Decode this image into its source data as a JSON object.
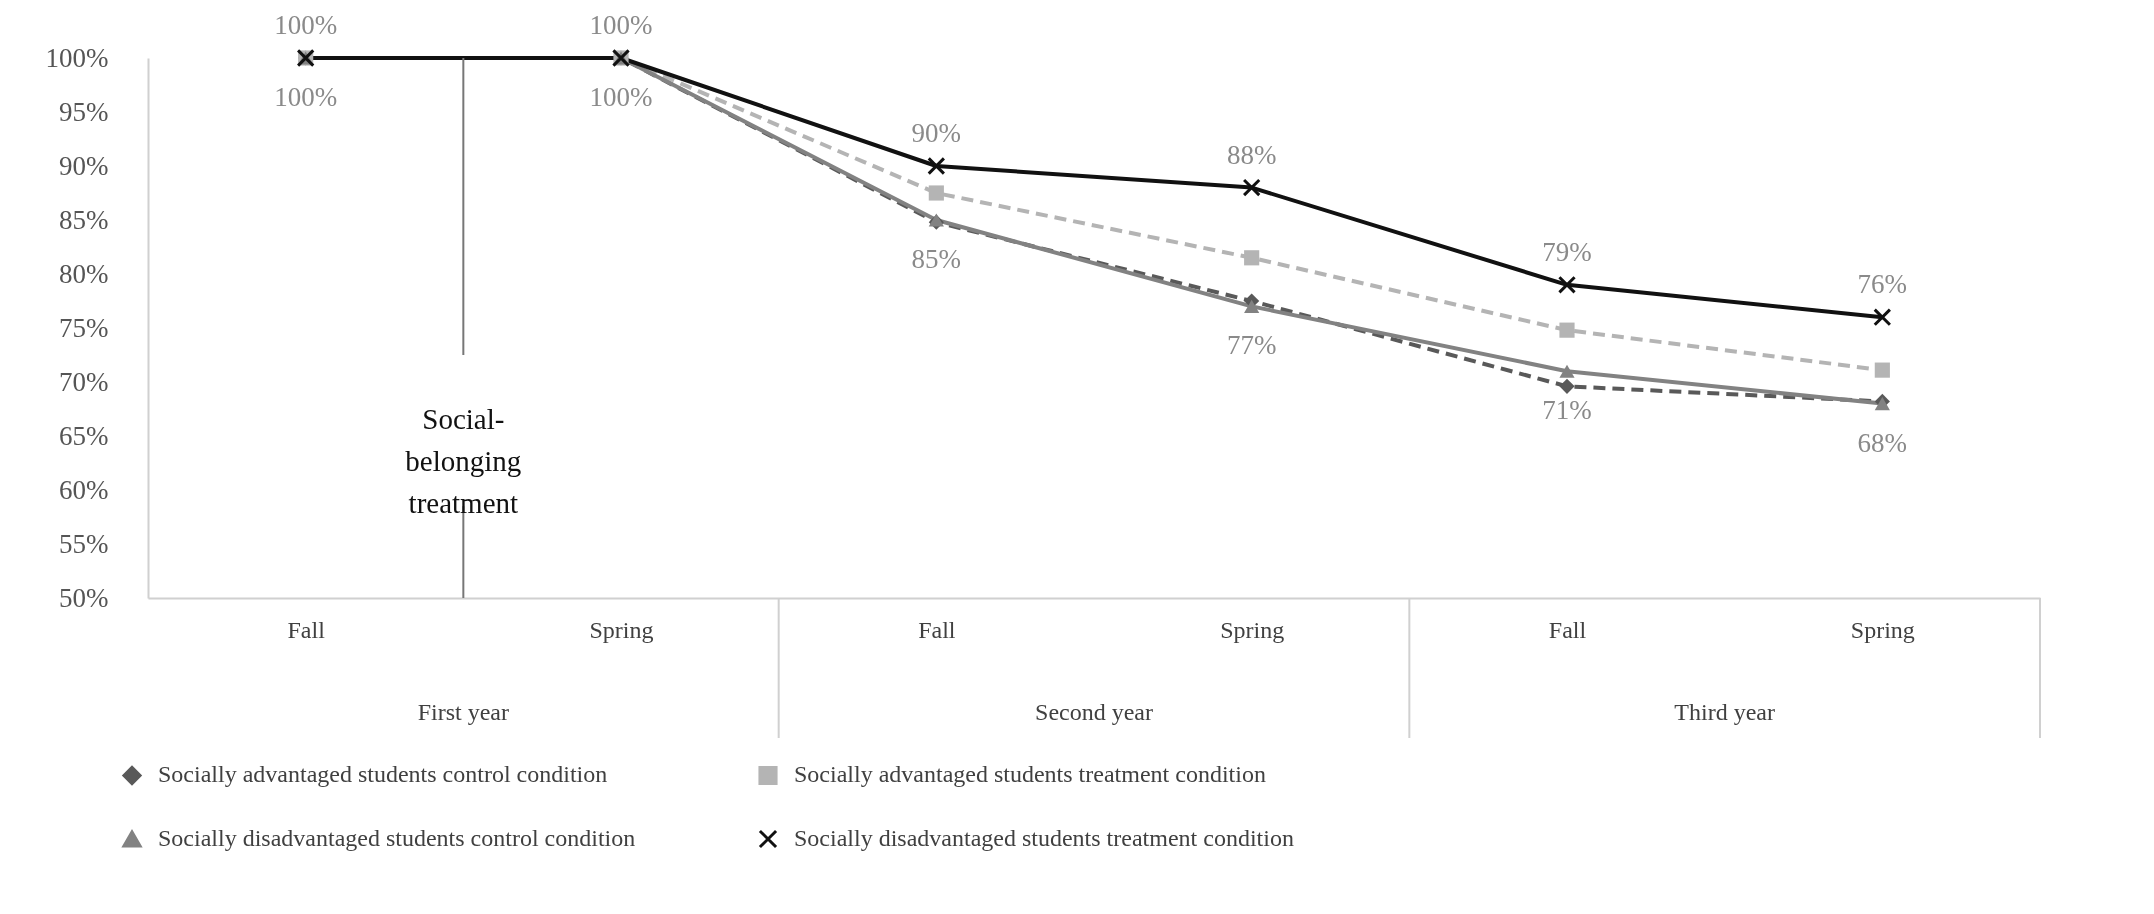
{
  "chart_data": {
    "type": "line",
    "categories": [
      "Fall",
      "Spring",
      "Fall",
      "Spring",
      "Fall",
      "Spring"
    ],
    "series": [
      {
        "name": "Socially advantaged students control condition",
        "color": "#595959",
        "marker": "diamond",
        "line_style": "dashed",
        "values": [
          100,
          100,
          84.8,
          77.5,
          69.6,
          68.2
        ]
      },
      {
        "name": "Socially advantaged students treatment condition",
        "color": "#b4b4b4",
        "marker": "square",
        "line_style": "dashed",
        "values": [
          100,
          100,
          87.5,
          81.5,
          74.8,
          71.1
        ]
      },
      {
        "name": "Socially disadvantaged students control condition",
        "color": "#828282",
        "marker": "triangle",
        "line_style": "solid",
        "values": [
          100,
          100,
          85,
          77,
          71,
          68
        ],
        "value_labels": [
          "100%",
          "100%",
          "85%",
          "77%",
          "71%",
          "68%"
        ]
      },
      {
        "name": "Socially disadvantaged students treatment condition",
        "color": "#111111",
        "marker": "cross",
        "line_style": "solid",
        "values": [
          100,
          100,
          90,
          88,
          79,
          76
        ],
        "value_labels": [
          "100%",
          "100%",
          "90%",
          "88%",
          "79%",
          "76%"
        ]
      }
    ],
    "ylim": [
      50,
      100
    ],
    "yticks": [
      {
        "value": 50,
        "label": "50%"
      },
      {
        "value": 55,
        "label": "55%"
      },
      {
        "value": 60,
        "label": "60%"
      },
      {
        "value": 65,
        "label": "65%"
      },
      {
        "value": 70,
        "label": "70%"
      },
      {
        "value": 75,
        "label": "75%"
      },
      {
        "value": 80,
        "label": "80%"
      },
      {
        "value": 85,
        "label": "85%"
      },
      {
        "value": 90,
        "label": "90%"
      },
      {
        "value": 95,
        "label": "95%"
      },
      {
        "value": 100,
        "label": "100%"
      }
    ],
    "annotations": [
      "Social-belonging treatment",
      "First year",
      "Second year",
      "Third year"
    ],
    "grid": false,
    "legend": "bottom"
  }
}
